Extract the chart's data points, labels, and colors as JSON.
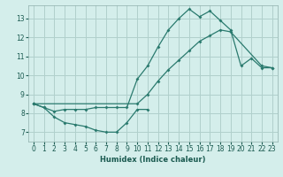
{
  "xlabel": "Humidex (Indice chaleur)",
  "bg_color": "#d4eeeb",
  "grid_color": "#b0d0cc",
  "line_color": "#2a7a6e",
  "xlim": [
    -0.5,
    23.5
  ],
  "ylim": [
    6.5,
    13.7
  ],
  "yticks": [
    7,
    8,
    9,
    10,
    11,
    12,
    13
  ],
  "xticks": [
    0,
    1,
    2,
    3,
    4,
    5,
    6,
    7,
    8,
    9,
    10,
    11,
    12,
    13,
    14,
    15,
    16,
    17,
    18,
    19,
    20,
    21,
    22,
    23
  ],
  "line1_x": [
    0,
    1,
    2,
    3,
    4,
    5,
    6,
    7,
    8,
    9,
    10,
    11
  ],
  "line1_y": [
    8.5,
    8.3,
    7.8,
    7.5,
    7.4,
    7.3,
    7.1,
    7.0,
    7.0,
    7.5,
    8.2,
    8.2
  ],
  "line2_x": [
    0,
    1,
    2,
    3,
    4,
    5,
    6,
    7,
    8,
    9,
    10,
    11,
    12,
    13,
    14,
    15,
    16,
    17,
    18,
    19,
    20,
    21,
    22,
    23
  ],
  "line2_y": [
    8.5,
    8.3,
    8.1,
    8.2,
    8.2,
    8.2,
    8.3,
    8.3,
    8.3,
    8.3,
    9.8,
    10.5,
    11.5,
    12.4,
    13.0,
    13.5,
    13.1,
    13.4,
    12.9,
    12.4,
    10.5,
    10.9,
    10.4,
    10.4
  ],
  "line3_x": [
    0,
    10,
    11,
    12,
    13,
    14,
    15,
    16,
    17,
    18,
    19,
    22,
    23
  ],
  "line3_y": [
    8.5,
    8.5,
    9.0,
    9.7,
    10.3,
    10.8,
    11.3,
    11.8,
    12.1,
    12.4,
    12.3,
    10.5,
    10.4
  ]
}
